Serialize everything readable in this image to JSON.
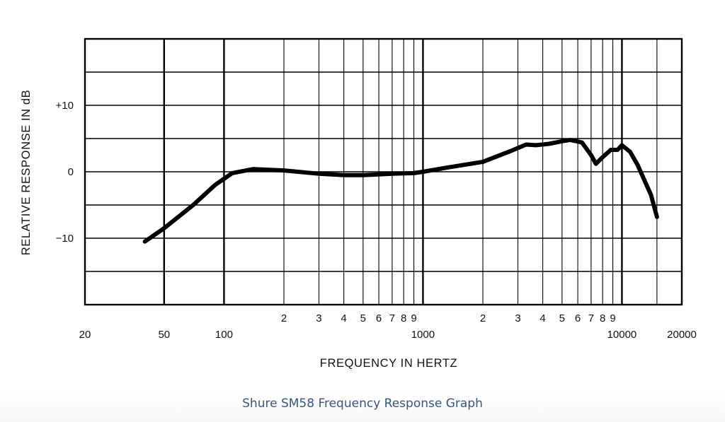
{
  "caption": "Shure SM58 Frequency Response Graph",
  "chart_data": {
    "type": "line",
    "title": "",
    "xlabel": "FREQUENCY IN HERTZ",
    "ylabel": "RELATIVE RESPONSE IN dB",
    "x_scale": "log",
    "xlim": [
      20,
      20000
    ],
    "ylim": [
      -20,
      20
    ],
    "grid": true,
    "y_ticks": [
      {
        "value": 10,
        "label": "+10"
      },
      {
        "value": 0,
        "label": "0"
      },
      {
        "value": -10,
        "label": "−10"
      }
    ],
    "y_gridlines": [
      -15,
      -10,
      -5,
      0,
      5,
      10,
      15
    ],
    "x_gridlines": [
      50,
      100,
      200,
      300,
      400,
      500,
      600,
      700,
      800,
      900,
      1000,
      2000,
      3000,
      4000,
      5000,
      6000,
      7000,
      8000,
      9000,
      10000,
      15000
    ],
    "x_major_gridlines": [
      50,
      100,
      1000,
      10000
    ],
    "x_ticks": [
      {
        "value": 20,
        "label": "20"
      },
      {
        "value": 50,
        "label": "50"
      },
      {
        "value": 100,
        "label": "100"
      },
      {
        "value": 1000,
        "label": "1000"
      },
      {
        "value": 10000,
        "label": "10000"
      },
      {
        "value": 20000,
        "label": "20000"
      }
    ],
    "x_minor_labels": [
      {
        "value": 200,
        "label": "2"
      },
      {
        "value": 300,
        "label": "3"
      },
      {
        "value": 400,
        "label": "4"
      },
      {
        "value": 500,
        "label": "5"
      },
      {
        "value": 600,
        "label": "6"
      },
      {
        "value": 700,
        "label": "7"
      },
      {
        "value": 800,
        "label": "8"
      },
      {
        "value": 900,
        "label": "9"
      },
      {
        "value": 2000,
        "label": "2"
      },
      {
        "value": 3000,
        "label": "3"
      },
      {
        "value": 4000,
        "label": "4"
      },
      {
        "value": 5000,
        "label": "5"
      },
      {
        "value": 6000,
        "label": "6"
      },
      {
        "value": 7000,
        "label": "7"
      },
      {
        "value": 8000,
        "label": "8"
      },
      {
        "value": 9000,
        "label": "9"
      }
    ],
    "series": [
      {
        "color": "#000000",
        "points": [
          [
            40,
            -10.5
          ],
          [
            50,
            -8.5
          ],
          [
            70,
            -5
          ],
          [
            90,
            -2
          ],
          [
            110,
            -0.2
          ],
          [
            140,
            0.4
          ],
          [
            200,
            0.2
          ],
          [
            300,
            -0.3
          ],
          [
            400,
            -0.5
          ],
          [
            500,
            -0.5
          ],
          [
            600,
            -0.4
          ],
          [
            700,
            -0.3
          ],
          [
            900,
            -0.2
          ],
          [
            1000,
            0
          ],
          [
            1300,
            0.6
          ],
          [
            2000,
            1.5
          ],
          [
            2800,
            3.2
          ],
          [
            3300,
            4.1
          ],
          [
            3700,
            4.0
          ],
          [
            4300,
            4.2
          ],
          [
            5000,
            4.6
          ],
          [
            5500,
            4.8
          ],
          [
            6300,
            4.4
          ],
          [
            7000,
            2.5
          ],
          [
            7400,
            1.2
          ],
          [
            8000,
            2.2
          ],
          [
            8800,
            3.3
          ],
          [
            9500,
            3.3
          ],
          [
            10000,
            4.0
          ],
          [
            11000,
            3.0
          ],
          [
            12000,
            1.0
          ],
          [
            14000,
            -3.5
          ],
          [
            15000,
            -6.8
          ]
        ]
      }
    ]
  }
}
